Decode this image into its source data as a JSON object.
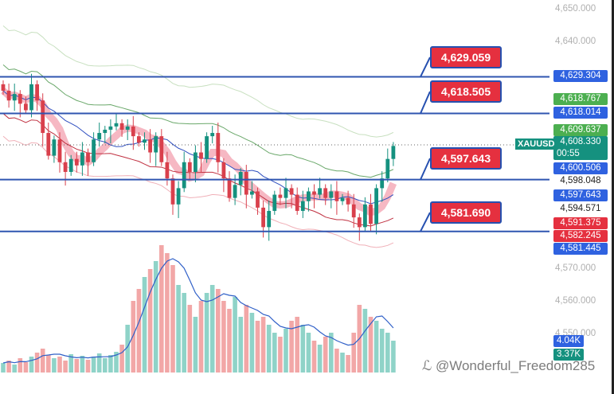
{
  "symbol": "XAUUSD",
  "countdown": "00:55",
  "watermark": "@Wonderful_Freedom285",
  "price_axis": [
    "4,650.000",
    "4,640.000",
    "4,570.000",
    "4,560.000",
    "4,550.000"
  ],
  "price_tags": [
    {
      "text": "4,629.304",
      "color": "blue",
      "price": 4629.304
    },
    {
      "text": "4,618.767",
      "color": "green",
      "price": 4618.767
    },
    {
      "text": "4,618.014",
      "color": "blue",
      "price": 4618.014
    },
    {
      "text": "4,609.637",
      "color": "green",
      "price": 4609.637
    },
    {
      "text": "4,608.330",
      "color": "teal",
      "price": 4608.33
    },
    {
      "text": "4,600.506",
      "color": "blue",
      "price": 4600.506
    },
    {
      "text": "4,598.048",
      "color": "plain",
      "price": 4598.048
    },
    {
      "text": "4,597.643",
      "color": "blue",
      "price": 4597.643
    },
    {
      "text": "4,594.571",
      "color": "plain",
      "price": 4594.571
    },
    {
      "text": "4,591.375",
      "color": "red",
      "price": 4591.375
    },
    {
      "text": "4,582.245",
      "color": "red",
      "price": 4582.245
    },
    {
      "text": "4,581.445",
      "color": "blue",
      "price": 4581.445
    }
  ],
  "volume_tags": [
    {
      "text": "4.04K",
      "color": "blue"
    },
    {
      "text": "3.37K",
      "color": "teal"
    }
  ],
  "levels": [
    {
      "label": "4,629.059",
      "price": 4629.304
    },
    {
      "label": "4,618.505",
      "price": 4618.014
    },
    {
      "label": "4,597.643",
      "price": 4597.643
    },
    {
      "label": "4,581.690",
      "price": 4581.69
    }
  ],
  "chart_data": {
    "type": "candlestick",
    "ylim": [
      4545,
      4652
    ],
    "current_price": 4608.33,
    "closes": [
      4625,
      4622,
      4624,
      4621,
      4619,
      4627,
      4622,
      4612,
      4605,
      4610,
      4603,
      4600,
      4604,
      4602,
      4606,
      4603,
      4610,
      4612,
      4613,
      4614,
      4615,
      4613,
      4614,
      4611,
      4609,
      4610,
      4606,
      4611,
      4603,
      4598,
      4590,
      4595,
      4603,
      4600,
      4606,
      4604,
      4611,
      4612,
      4603,
      4598,
      4592,
      4596,
      4600,
      4593,
      4594,
      4589,
      4583,
      4588,
      4593,
      4592,
      4595,
      4593,
      4588,
      4591,
      4594,
      4593,
      4595,
      4592,
      4594,
      4591,
      4592,
      4590,
      4586,
      4583,
      4590,
      4584,
      4595,
      4598,
      4604,
      4608
    ],
    "volume_k": [
      1.2,
      1.5,
      1.0,
      1.8,
      1.3,
      2.0,
      2.5,
      3.0,
      2.2,
      1.8,
      2.0,
      1.5,
      2.3,
      1.7,
      2.1,
      1.6,
      2.0,
      2.4,
      1.8,
      2.2,
      2.6,
      3.5,
      6.0,
      9.0,
      10.5,
      12.0,
      13.0,
      14.0,
      16.0,
      15.0,
      13.5,
      11.0,
      10.0,
      8.5,
      7.0,
      9.0,
      10.0,
      11.0,
      10.5,
      9.0,
      8.0,
      9.5,
      7.0,
      8.5,
      7.5,
      6.5,
      7.0,
      6.0,
      5.0,
      4.5,
      5.5,
      6.5,
      7.0,
      6.0,
      5.0,
      4.0,
      3.5,
      4.5,
      5.0,
      3.0,
      2.5,
      2.2,
      5.0,
      8.5,
      8.0,
      7.0,
      6.5,
      5.5,
      5.0,
      4.0
    ]
  }
}
